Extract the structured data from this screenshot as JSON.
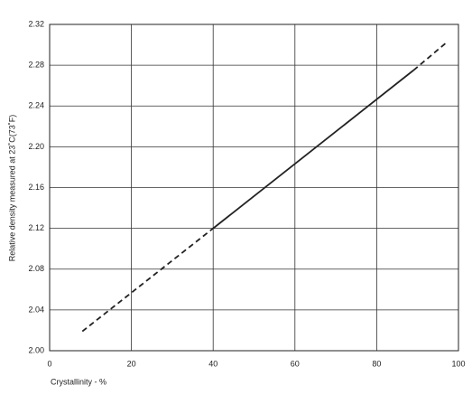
{
  "chart_data": {
    "type": "line",
    "xlabel": "Crystallinity - %",
    "ylabel": "Relative density measured at 23˚C(73˚F)",
    "x": [
      8,
      40,
      89,
      97
    ],
    "series": [
      {
        "color": "#222222",
        "dashed": true,
        "values": [
          2.019,
          2.12,
          null,
          null
        ]
      },
      {
        "color": "#222222",
        "dashed": false,
        "values": [
          null,
          2.12,
          2.275,
          null
        ]
      },
      {
        "color": "#222222",
        "dashed": true,
        "values": [
          null,
          null,
          2.275,
          2.302
        ]
      }
    ],
    "xlim": [
      0,
      100
    ],
    "xticks": [
      0,
      20,
      40,
      60,
      80,
      100
    ],
    "ylim": [
      2.0,
      2.32
    ],
    "yticks": [
      {
        "value": 2.0,
        "label": "2.00"
      },
      2.04,
      2.08,
      2.12,
      2.16,
      {
        "value": 2.2,
        "label": "2.20"
      },
      2.24,
      2.28,
      2.32
    ],
    "grid": true
  }
}
